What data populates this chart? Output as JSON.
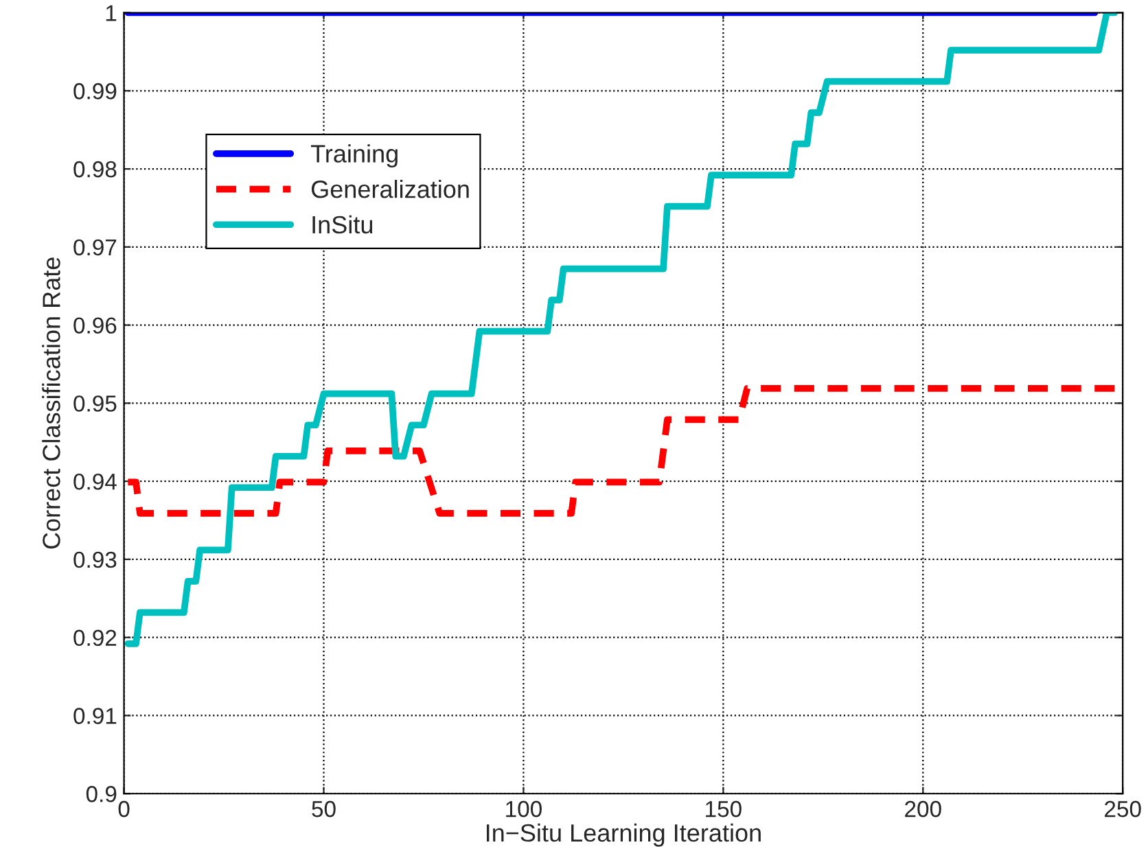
{
  "chart_data": {
    "type": "line",
    "xlabel": "In−Situ Learning Iteration",
    "ylabel": "Correct Classification Rate",
    "xlim": [
      0,
      250
    ],
    "xticks": [
      0,
      50,
      100,
      150,
      200,
      250
    ],
    "ylim": [
      0.9,
      1
    ],
    "yticks": [
      0.9,
      0.91,
      0.92,
      0.93,
      0.94,
      0.95,
      0.96,
      0.97,
      0.98,
      0.99,
      1
    ],
    "grid": true,
    "legend": "top left",
    "marker": "none",
    "series": [
      {
        "name": "Training",
        "color": "#0000ff",
        "line_style": "solid",
        "x": [
          1,
          243
        ],
        "values": [
          1,
          1
        ]
      },
      {
        "name": "Generalization",
        "color": "#ff0000",
        "line_style": "dashed",
        "x": [
          1,
          3,
          4,
          38,
          39,
          50,
          51,
          74,
          79,
          112,
          113,
          134,
          136,
          154,
          156,
          248
        ],
        "values": [
          0.9399,
          0.9399,
          0.9359,
          0.9359,
          0.9399,
          0.9399,
          0.9439,
          0.9439,
          0.9359,
          0.9359,
          0.9399,
          0.9399,
          0.9479,
          0.9479,
          0.9519,
          0.9519
        ]
      },
      {
        "name": "InSitu",
        "color": "#00bfbf",
        "line_style": "solid",
        "x": [
          1,
          3,
          4,
          15,
          16,
          18,
          19,
          26,
          27,
          37,
          38,
          45,
          46,
          48,
          50,
          67,
          68,
          70,
          72,
          75,
          77,
          87,
          89,
          106,
          107,
          109,
          110,
          135,
          136,
          146,
          147,
          167,
          168,
          171,
          172,
          174,
          176,
          206,
          207,
          244,
          246,
          248
        ],
        "values": [
          0.9192,
          0.9192,
          0.9232,
          0.9232,
          0.9272,
          0.9272,
          0.9312,
          0.9312,
          0.9392,
          0.9392,
          0.9432,
          0.9432,
          0.9472,
          0.9472,
          0.9512,
          0.9512,
          0.9432,
          0.9432,
          0.9472,
          0.9472,
          0.9512,
          0.9512,
          0.9592,
          0.9592,
          0.9632,
          0.9632,
          0.9672,
          0.9672,
          0.9752,
          0.9752,
          0.9792,
          0.9792,
          0.9832,
          0.9832,
          0.9872,
          0.9872,
          0.9912,
          0.9912,
          0.9952,
          0.9952,
          1.0,
          1.0
        ]
      }
    ]
  }
}
